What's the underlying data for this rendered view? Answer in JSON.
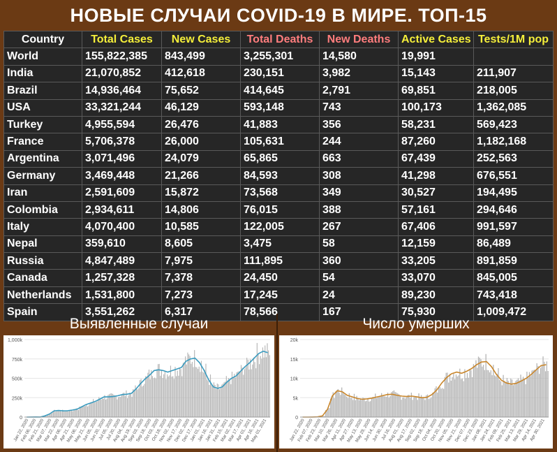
{
  "title": "НОВЫЕ СЛУЧАИ COVID-19 В МИРЕ. ТОП-15",
  "table": {
    "headers": [
      "Country",
      "Total Cases",
      "New Cases",
      "Total Deaths",
      "New Deaths",
      "Active Cases",
      "Tests/1M pop"
    ],
    "rows": [
      [
        "World",
        "155,822,385",
        "843,499",
        "3,255,301",
        "14,580",
        "19,991",
        ""
      ],
      [
        "India",
        "21,070,852",
        "412,618",
        "230,151",
        "3,982",
        "15,143",
        "211,907"
      ],
      [
        "Brazil",
        "14,936,464",
        "75,652",
        "414,645",
        "2,791",
        "69,851",
        "218,005"
      ],
      [
        "USA",
        "33,321,244",
        "46,129",
        "593,148",
        "743",
        "100,173",
        "1,362,085"
      ],
      [
        "Turkey",
        "4,955,594",
        "26,476",
        "41,883",
        "356",
        "58,231",
        "569,423"
      ],
      [
        "France",
        "5,706,378",
        "26,000",
        "105,631",
        "244",
        "87,260",
        "1,182,168"
      ],
      [
        "Argentina",
        "3,071,496",
        "24,079",
        "65,865",
        "663",
        "67,439",
        "252,563"
      ],
      [
        "Germany",
        "3,469,448",
        "21,266",
        "84,593",
        "308",
        "41,298",
        "676,551"
      ],
      [
        "Iran",
        "2,591,609",
        "15,872",
        "73,568",
        "349",
        "30,527",
        "194,495"
      ],
      [
        "Colombia",
        "2,934,611",
        "14,806",
        "76,015",
        "388",
        "57,161",
        "294,646"
      ],
      [
        "Italy",
        "4,070,400",
        "10,585",
        "122,005",
        "267",
        "67,406",
        "991,597"
      ],
      [
        "Nepal",
        "359,610",
        "8,605",
        "3,475",
        "58",
        "12,159",
        "86,489"
      ],
      [
        "Russia",
        "4,847,489",
        "7,975",
        "111,895",
        "360",
        "33,205",
        "891,859"
      ],
      [
        "Canada",
        "1,257,328",
        "7,378",
        "24,450",
        "54",
        "33,070",
        "845,005"
      ],
      [
        "Netherlands",
        "1,531,800",
        "7,273",
        "17,245",
        "24",
        "89,230",
        "743,418"
      ],
      [
        "Spain",
        "3,551,262",
        "6,317",
        "78,566",
        "167",
        "75,930",
        "1,009,472"
      ]
    ]
  },
  "colors": {
    "background": "#6b3a14",
    "table_bg": "#262626",
    "header_yellow": "#f5ef3a",
    "header_pink": "#ff7d7d",
    "cases_line": "#3a9bbf",
    "deaths_line": "#c9862b",
    "bars": "#b4b4b4"
  },
  "chart_data": [
    {
      "type": "bar",
      "title": "Выявленные случаи",
      "ylim": [
        0,
        1000000
      ],
      "yticks": [
        "0",
        "250k",
        "500k",
        "750k",
        "1,000k"
      ],
      "xticks": [
        "Jan 22, 2020",
        "Feb 06, 2020",
        "Feb 21, 2020",
        "Mar 07, 2020",
        "Mar 22, 2020",
        "Apr 06, 2020",
        "Apr 21, 2020",
        "May 06, 2020",
        "May 21, 2020",
        "Jun 05, 2020",
        "Jun 20, 2020",
        "Jul 05, 2020",
        "Jul 20, 2020",
        "Aug 04, 2020",
        "Aug 19, 2020",
        "Sep 03, 2020",
        "Sep 18, 2020",
        "Oct 03, 2020",
        "Oct 18, 2020",
        "Nov 02, 2020",
        "Nov 17, 2020",
        "Dec 02, 2020",
        "Dec 17, 2020",
        "Jan 01, 2021",
        "Jan 16, 2021",
        "Jan 31, 2021",
        "Feb 15, 2021",
        "Mar 02, 2021",
        "Mar 17, 2021",
        "Apr 01, 2021",
        "Apr 16, 2021",
        "May 01, 2021"
      ],
      "series": [
        {
          "kind": "bar",
          "values": [
            0,
            1000,
            2000,
            1000,
            15000,
            40000,
            80000,
            85000,
            80000,
            82000,
            90000,
            100000,
            130000,
            160000,
            180000,
            200000,
            230000,
            260000,
            260000,
            265000,
            275000,
            290000,
            295000,
            305000,
            360000,
            430000,
            490000,
            540000,
            600000,
            610000,
            600000,
            580000,
            600000,
            620000,
            640000,
            720000,
            750000,
            760000,
            700000,
            600000,
            480000,
            390000,
            370000,
            390000,
            450000,
            500000,
            530000,
            590000,
            650000,
            700000,
            760000,
            820000,
            850000,
            830000
          ]
        },
        {
          "kind": "line",
          "values": [
            0,
            1000,
            2000,
            1000,
            15000,
            40000,
            80000,
            85000,
            80000,
            82000,
            90000,
            100000,
            130000,
            160000,
            180000,
            200000,
            230000,
            260000,
            260000,
            265000,
            275000,
            290000,
            295000,
            305000,
            360000,
            430000,
            490000,
            540000,
            600000,
            610000,
            600000,
            580000,
            600000,
            620000,
            640000,
            720000,
            750000,
            760000,
            700000,
            600000,
            480000,
            390000,
            370000,
            390000,
            450000,
            500000,
            530000,
            590000,
            650000,
            700000,
            760000,
            820000,
            850000,
            830000
          ]
        }
      ]
    },
    {
      "type": "bar",
      "title": "Число умерших",
      "ylim": [
        0,
        20000
      ],
      "yticks": [
        "0",
        "5k",
        "10k",
        "15k",
        "20k"
      ],
      "xticks": [
        "Jan 22, 2020",
        "Feb 07, 2020",
        "Feb 23, 2020",
        "Mar 10, 2020",
        "Mar 26, 2020",
        "Apr 11, 2020",
        "Apr 27, 2020",
        "May 13, 2020",
        "May 29, 2020",
        "Jun 14, 2020",
        "Jun 30, 2020",
        "Jul 16, 2020",
        "Aug 01, 2020",
        "Aug 17, 2020",
        "Sep 02, 2020",
        "Sep 18, 2020",
        "Oct 04, 2020",
        "Oct 20, 2020",
        "Nov 05, 2020",
        "Nov 21, 2020",
        "Dec 07, 2020",
        "Dec 23, 2020",
        "Jan 08, 2021",
        "Jan 24, 2021",
        "Feb 09, 2021",
        "Feb 25, 2021",
        "Mar 13, 2021",
        "Mar 29, 2021",
        "Apr 14, 2021",
        "Apr 30, 2021"
      ],
      "series": [
        {
          "kind": "bar",
          "values": [
            0,
            0,
            10,
            50,
            300,
            2000,
            5500,
            6800,
            6500,
            5600,
            5200,
            4800,
            4600,
            4700,
            4900,
            5200,
            5500,
            5800,
            5900,
            5600,
            5400,
            5300,
            5400,
            5200,
            5000,
            5100,
            5800,
            7000,
            8800,
            10200,
            11200,
            11600,
            11300,
            11800,
            12500,
            13500,
            14200,
            14300,
            13000,
            11000,
            9500,
            8800,
            8500,
            8700,
            9300,
            10000,
            11000,
            12200,
            13300,
            13500
          ]
        },
        {
          "kind": "line",
          "values": [
            0,
            0,
            10,
            50,
            300,
            2000,
            5500,
            6800,
            6500,
            5600,
            5200,
            4800,
            4600,
            4700,
            4900,
            5200,
            5500,
            5800,
            5900,
            5600,
            5400,
            5300,
            5400,
            5200,
            5000,
            5100,
            5800,
            7000,
            8800,
            10200,
            11200,
            11600,
            11300,
            11800,
            12500,
            13500,
            14200,
            14300,
            13000,
            11000,
            9500,
            8800,
            8500,
            8700,
            9300,
            10000,
            11000,
            12200,
            13300,
            13500
          ]
        }
      ]
    }
  ]
}
